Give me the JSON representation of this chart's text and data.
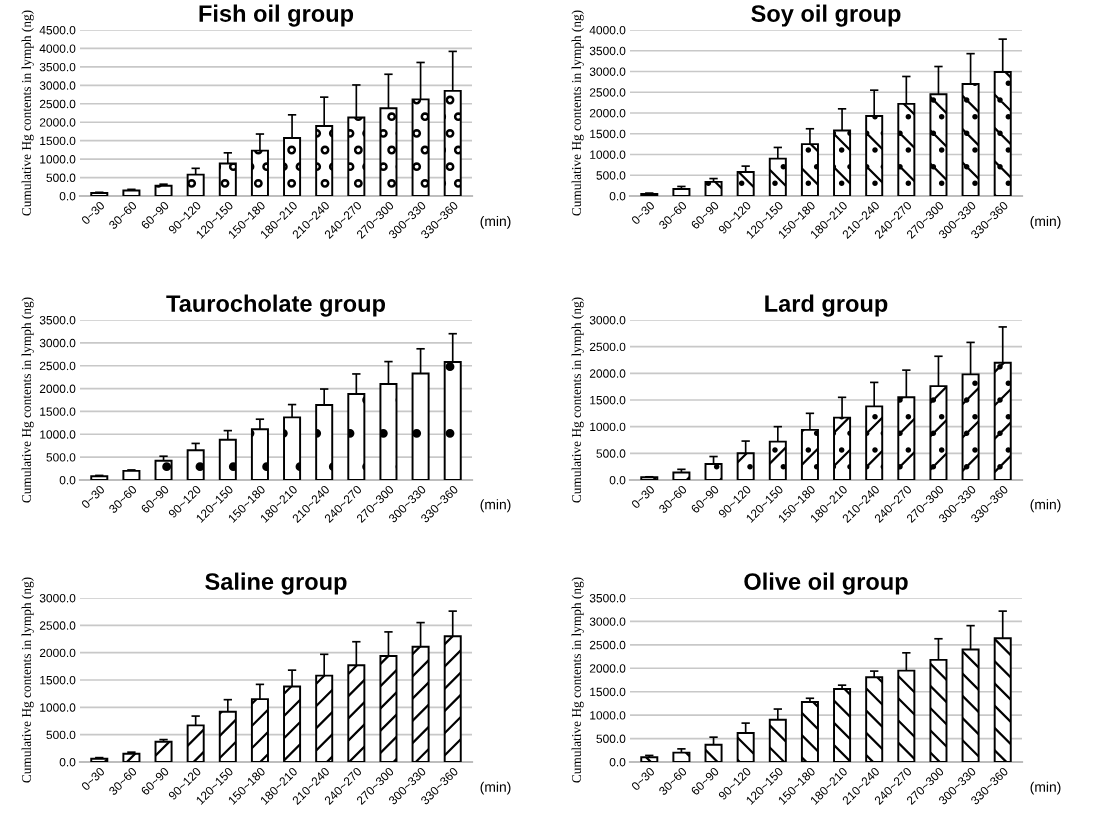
{
  "chart_data": [
    {
      "type": "bar",
      "title": "Fish oil group",
      "xlabel": "(min)",
      "ylabel": "Cumulative Hg contents in lymph (ng)",
      "categories": [
        "0~30",
        "30~60",
        "60~90",
        "90~120",
        "120~150",
        "150~180",
        "180~210",
        "210~240",
        "240~270",
        "270~300",
        "300~330",
        "330~360"
      ],
      "values": [
        80,
        150,
        280,
        580,
        880,
        1230,
        1570,
        1900,
        2130,
        2380,
        2620,
        2850
      ],
      "errors": [
        20,
        30,
        40,
        170,
        290,
        450,
        630,
        780,
        880,
        920,
        1000,
        1070
      ],
      "ylim": [
        0,
        4500
      ],
      "yticks": [
        {
          "value": 0,
          "label": "0.0"
        },
        {
          "value": 500,
          "label": "500.0"
        },
        {
          "value": 1000,
          "label": "1000.0"
        },
        {
          "value": 1500,
          "label": "1500.0"
        },
        {
          "value": 2000,
          "label": "2000.0"
        },
        {
          "value": 2500,
          "label": "2500.0"
        },
        {
          "value": 3000,
          "label": "3000.0"
        },
        {
          "value": 3500,
          "label": "3500.0"
        },
        {
          "value": 4000,
          "label": "4000.0"
        },
        {
          "value": 4500,
          "label": "4500.0"
        }
      ],
      "grid": "y"
    },
    {
      "type": "bar",
      "title": "Soy oil group",
      "xlabel": "(min)",
      "ylabel": "Cumulative Hg contents in lymph (ng)",
      "categories": [
        "0~30",
        "30~60",
        "60~90",
        "90~120",
        "120~150",
        "150~180",
        "180~210",
        "210~240",
        "240~270",
        "270~300",
        "300~330",
        "330~360"
      ],
      "values": [
        50,
        170,
        340,
        580,
        900,
        1250,
        1580,
        1930,
        2220,
        2450,
        2700,
        2990
      ],
      "errors": [
        20,
        60,
        80,
        140,
        270,
        370,
        520,
        620,
        660,
        670,
        730,
        790
      ],
      "ylim": [
        0,
        4000
      ],
      "yticks": [
        {
          "value": 0,
          "label": "0.0"
        },
        {
          "value": 500,
          "label": "500.0"
        },
        {
          "value": 1000,
          "label": "1000.0"
        },
        {
          "value": 1500,
          "label": "1500.0"
        },
        {
          "value": 2000,
          "label": "2000.0"
        },
        {
          "value": 2500,
          "label": "2500.0"
        },
        {
          "value": 3000,
          "label": "3000.0"
        },
        {
          "value": 3500,
          "label": "3500.0"
        },
        {
          "value": 4000,
          "label": "4000.0"
        }
      ],
      "grid": "y"
    },
    {
      "type": "bar",
      "title": "Taurocholate group",
      "xlabel": "(min)",
      "ylabel": "Cumulative Hg contents in lymph (ng)",
      "categories": [
        "0~30",
        "30~60",
        "60~90",
        "90~120",
        "120~150",
        "150~180",
        "180~210",
        "210~240",
        "240~270",
        "270~300",
        "300~330",
        "330~360"
      ],
      "values": [
        80,
        200,
        420,
        650,
        880,
        1110,
        1370,
        1640,
        1880,
        2100,
        2330,
        2580
      ],
      "errors": [
        20,
        20,
        100,
        150,
        200,
        220,
        280,
        350,
        440,
        490,
        540,
        620
      ],
      "ylim": [
        0,
        3500
      ],
      "yticks": [
        {
          "value": 0,
          "label": "0.0"
        },
        {
          "value": 500,
          "label": "500.0"
        },
        {
          "value": 1000,
          "label": "1000.0"
        },
        {
          "value": 1500,
          "label": "1500.0"
        },
        {
          "value": 2000,
          "label": "2000.0"
        },
        {
          "value": 2500,
          "label": "2500.0"
        },
        {
          "value": 3000,
          "label": "3000.0"
        },
        {
          "value": 3500,
          "label": "3500.0"
        }
      ],
      "grid": "y"
    },
    {
      "type": "bar",
      "title": "Lard group",
      "xlabel": "(min)",
      "ylabel": "Cumulative Hg contents in lymph (ng)",
      "categories": [
        "0~30",
        "30~60",
        "60~90",
        "90~120",
        "120~150",
        "150~180",
        "180~210",
        "210~240",
        "240~270",
        "270~300",
        "300~330",
        "330~360"
      ],
      "values": [
        50,
        140,
        300,
        500,
        720,
        940,
        1170,
        1380,
        1550,
        1760,
        1980,
        2200
      ],
      "errors": [
        10,
        60,
        140,
        230,
        280,
        310,
        380,
        450,
        510,
        560,
        600,
        670
      ],
      "ylim": [
        0,
        3000
      ],
      "yticks": [
        {
          "value": 0,
          "label": "0.0"
        },
        {
          "value": 500,
          "label": "500.0"
        },
        {
          "value": 1000,
          "label": "1000.0"
        },
        {
          "value": 1500,
          "label": "1500.0"
        },
        {
          "value": 2000,
          "label": "2000.0"
        },
        {
          "value": 2500,
          "label": "2500.0"
        },
        {
          "value": 3000,
          "label": "3000.0"
        }
      ],
      "grid": "y"
    },
    {
      "type": "bar",
      "title": "Saline group",
      "xlabel": "(min)",
      "ylabel": "Cumulative Hg contents in lymph (ng)",
      "categories": [
        "0~30",
        "30~60",
        "60~90",
        "90~120",
        "120~150",
        "150~180",
        "180~210",
        "210~240",
        "240~270",
        "270~300",
        "300~330",
        "330~360"
      ],
      "values": [
        60,
        150,
        370,
        670,
        920,
        1150,
        1380,
        1580,
        1770,
        1940,
        2110,
        2300
      ],
      "errors": [
        20,
        30,
        40,
        170,
        220,
        270,
        300,
        390,
        430,
        440,
        440,
        460
      ],
      "ylim": [
        0,
        3000
      ],
      "yticks": [
        {
          "value": 0,
          "label": "0.0"
        },
        {
          "value": 500,
          "label": "500.0"
        },
        {
          "value": 1000,
          "label": "1000.0"
        },
        {
          "value": 1500,
          "label": "1500.0"
        },
        {
          "value": 2000,
          "label": "2000.0"
        },
        {
          "value": 2500,
          "label": "2500.0"
        },
        {
          "value": 3000,
          "label": "3000.0"
        }
      ],
      "grid": "y"
    },
    {
      "type": "bar",
      "title": "Olive oil group",
      "xlabel": "(min)",
      "ylabel": "Cumulative Hg contents in lymph (ng)",
      "categories": [
        "0~30",
        "30~60",
        "60~90",
        "90~120",
        "120~150",
        "150~180",
        "180~210",
        "210~240",
        "240~270",
        "270~300",
        "300~330",
        "330~360"
      ],
      "values": [
        100,
        200,
        370,
        620,
        900,
        1280,
        1560,
        1810,
        1950,
        2180,
        2400,
        2640
      ],
      "errors": [
        40,
        80,
        160,
        210,
        230,
        80,
        80,
        130,
        380,
        450,
        510,
        580
      ],
      "ylim": [
        0,
        3500
      ],
      "yticks": [
        {
          "value": 0,
          "label": "0.0"
        },
        {
          "value": 500,
          "label": "500.0"
        },
        {
          "value": 1000,
          "label": "1000.0"
        },
        {
          "value": 1500,
          "label": "1500.0"
        },
        {
          "value": 2000,
          "label": "2000.0"
        },
        {
          "value": 2500,
          "label": "2500.0"
        },
        {
          "value": 3000,
          "label": "3000.0"
        },
        {
          "value": 3500,
          "label": "3500.0"
        }
      ],
      "grid": "y"
    }
  ]
}
